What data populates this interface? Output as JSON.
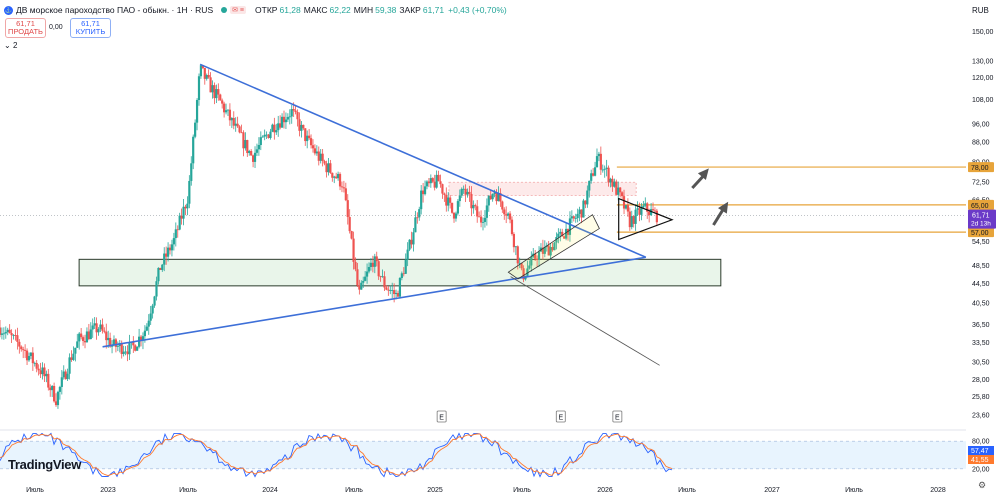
{
  "header": {
    "symbol": "ДВ морское пароходство ПАО - обыкн. · 1Н · RUS",
    "flag": "✉ ≡",
    "open_label": "ОТКР",
    "open": "61,28",
    "high_label": "МАКС",
    "high": "62,22",
    "low_label": "МИН",
    "low": "59,38",
    "close_label": "ЗАКР",
    "close": "61,71",
    "change": "+0,43 (+0,70%)"
  },
  "trade": {
    "sell_price": "61,71",
    "sell_label": "ПРОДАТЬ",
    "spread": "0,00",
    "buy_price": "61,71",
    "buy_label": "КУПИТЬ"
  },
  "layers_label": "2",
  "currency": "RUB",
  "logo_text": "TradingView",
  "settings_icon": "gear-icon",
  "colors": {
    "up": "#26a69a",
    "down": "#ef5350",
    "trend": "#3d6fd8",
    "level": "#e7a43a",
    "price_tag": "#6b3ac8",
    "stoch_k": "#2962ff",
    "stoch_d": "#ff7a2e"
  },
  "chart_data": {
    "type": "candlestick",
    "y_scale": "log",
    "ylim": [
      22.5,
      160
    ],
    "y_ticks": [
      "150,00",
      "130,00",
      "120,00",
      "108,00",
      "96,00",
      "88,00",
      "80,00",
      "72,50",
      "66,50",
      "60,50",
      "54,50",
      "48,50",
      "44,50",
      "40,50",
      "36,50",
      "33,50",
      "30,50",
      "28,00",
      "25,80",
      "23,60"
    ],
    "x_ticks": [
      "Июль",
      "2023",
      "Июль",
      "2024",
      "Июль",
      "2025",
      "Июль",
      "2026",
      "Июль",
      "2027",
      "Июль",
      "2028"
    ],
    "x_range": [
      "2022-06-01",
      "2028-03-01"
    ],
    "price_path": [
      [
        "2022-06-01",
        36
      ],
      [
        "2022-07-15",
        33
      ],
      [
        "2022-09-01",
        29
      ],
      [
        "2022-10-01",
        25.5
      ],
      [
        "2022-11-01",
        31
      ],
      [
        "2022-11-20",
        34
      ],
      [
        "2023-01-01",
        36
      ],
      [
        "2023-02-01",
        33
      ],
      [
        "2023-03-15",
        32.5
      ],
      [
        "2023-04-15",
        36
      ],
      [
        "2023-05-15",
        48
      ],
      [
        "2023-06-15",
        55
      ],
      [
        "2023-07-15",
        68
      ],
      [
        "2023-08-10",
        125
      ],
      [
        "2023-08-25",
        118
      ],
      [
        "2023-09-20",
        108
      ],
      [
        "2023-10-20",
        96
      ],
      [
        "2023-12-01",
        82
      ],
      [
        "2024-01-15",
        95
      ],
      [
        "2024-02-25",
        102
      ],
      [
        "2024-04-01",
        88
      ],
      [
        "2024-05-01",
        80
      ],
      [
        "2024-06-15",
        72
      ],
      [
        "2024-07-20",
        42
      ],
      [
        "2024-08-20",
        50
      ],
      [
        "2024-09-15",
        44
      ],
      [
        "2024-10-10",
        42
      ],
      [
        "2024-11-05",
        52
      ],
      [
        "2024-12-05",
        70
      ],
      [
        "2025-01-10",
        73
      ],
      [
        "2025-02-10",
        62
      ],
      [
        "2025-03-05",
        70
      ],
      [
        "2025-04-10",
        60
      ],
      [
        "2025-05-10",
        70
      ],
      [
        "2025-06-10",
        62
      ],
      [
        "2025-07-10",
        46
      ],
      [
        "2025-08-10",
        51
      ],
      [
        "2025-09-10",
        53
      ],
      [
        "2025-10-10",
        57
      ],
      [
        "2025-11-20",
        64
      ],
      [
        "2025-12-20",
        82
      ],
      [
        "2026-01-10",
        76
      ],
      [
        "2026-02-10",
        67
      ],
      [
        "2026-03-01",
        60
      ],
      [
        "2026-04-01",
        64
      ],
      [
        "2026-05-01",
        61.71
      ]
    ],
    "last_price": "61,71",
    "last_price_timer": "2d 13h",
    "levels": [
      {
        "price": 78,
        "label": "78,00"
      },
      {
        "price": 65,
        "label": "65,00"
      },
      {
        "price": 57,
        "label": "57,00"
      }
    ],
    "zones": [
      {
        "from": 44,
        "to": 50,
        "start": "2022-11-20",
        "end": "2026-09-15",
        "color": "green"
      },
      {
        "from": 68,
        "to": 72.5,
        "start": "2025-02-01",
        "end": "2026-03-15",
        "color": "red"
      }
    ],
    "trendlines": [
      {
        "x1": "2023-08-10",
        "y1": 128,
        "x2": "2026-04-05",
        "y2": 50.5
      },
      {
        "x1": "2023-01-10",
        "y1": 32.8,
        "x2": "2026-04-05",
        "y2": 50.5
      },
      {
        "x1": "2025-06-15",
        "y1": 46,
        "x2": "2026-05-05",
        "y2": 30
      }
    ],
    "triangle": [
      [
        "2026-02-05",
        67
      ],
      [
        "2026-06-01",
        60.5
      ],
      [
        "2026-02-05",
        55
      ]
    ],
    "channel": [
      [
        "2025-06-10",
        47
      ],
      [
        "2025-12-10",
        62
      ],
      [
        "2025-12-25",
        58
      ],
      [
        "2025-07-01",
        45.5
      ]
    ],
    "arrows": [
      {
        "x1": "2026-07-15",
        "y1": 70.5,
        "x2": "2026-08-20",
        "y2": 77.5
      },
      {
        "x1": "2026-08-30",
        "y1": 59,
        "x2": "2026-10-01",
        "y2": 66
      }
    ],
    "events": [
      {
        "date": "2025-01-15",
        "label": "E"
      },
      {
        "date": "2025-10-01",
        "label": "E"
      },
      {
        "date": "2026-02-01",
        "label": "E"
      }
    ],
    "stoch": {
      "ticks": [
        "80,00",
        "20,00"
      ],
      "k_value": "57,47",
      "d_value": "41,55",
      "band": [
        20,
        80
      ]
    }
  }
}
